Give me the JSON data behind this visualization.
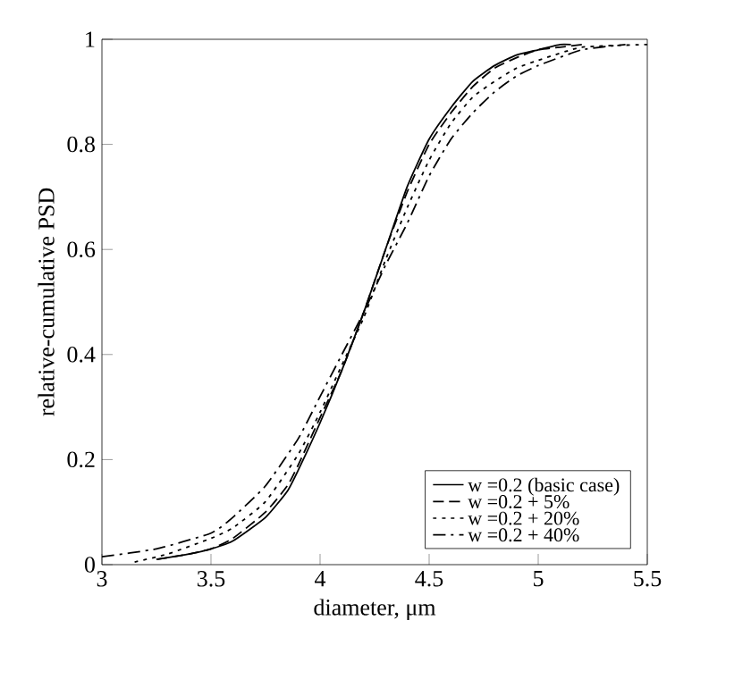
{
  "chart_data": {
    "type": "line",
    "xlabel": "diameter, μm",
    "ylabel": "relative-cumulative PSD",
    "xlim": [
      3,
      5.5
    ],
    "ylim": [
      0,
      1
    ],
    "xticks": [
      3,
      3.5,
      4,
      4.5,
      5,
      5.5
    ],
    "yticks": [
      0,
      0.2,
      0.4,
      0.6,
      0.8,
      1
    ],
    "legend": "bottom right",
    "grid": false,
    "marker": "none",
    "series": [
      {
        "name": "w =0.2 (basic case)",
        "color": "#000000",
        "line_style": "solid",
        "x": [
          3.25,
          3.4,
          3.5,
          3.6,
          3.75,
          3.85,
          3.9,
          4.0,
          4.1,
          4.2,
          4.3,
          4.4,
          4.5,
          4.6,
          4.7,
          4.8,
          4.9,
          5.0,
          5.1,
          5.15
        ],
        "values": [
          0.01,
          0.02,
          0.03,
          0.045,
          0.09,
          0.14,
          0.18,
          0.27,
          0.37,
          0.48,
          0.6,
          0.72,
          0.81,
          0.87,
          0.92,
          0.95,
          0.97,
          0.98,
          0.99,
          0.99
        ]
      },
      {
        "name": "w =0.2 + 5%",
        "color": "#000000",
        "line_style": "dashed",
        "x": [
          3.25,
          3.4,
          3.5,
          3.6,
          3.75,
          3.85,
          3.9,
          4.0,
          4.1,
          4.2,
          4.3,
          4.4,
          4.5,
          4.6,
          4.7,
          4.8,
          4.9,
          5.0,
          5.1,
          5.2
        ],
        "values": [
          0.01,
          0.02,
          0.03,
          0.05,
          0.1,
          0.15,
          0.19,
          0.28,
          0.37,
          0.48,
          0.6,
          0.71,
          0.8,
          0.86,
          0.91,
          0.945,
          0.965,
          0.98,
          0.985,
          0.99
        ]
      },
      {
        "name": "w =0.2 + 20%",
        "color": "#000000",
        "line_style": "dotted",
        "x": [
          3.15,
          3.3,
          3.5,
          3.6,
          3.75,
          3.9,
          4.0,
          4.1,
          4.2,
          4.3,
          4.4,
          4.5,
          4.6,
          4.7,
          4.8,
          4.9,
          5.0,
          5.2,
          5.5
        ],
        "values": [
          0.005,
          0.02,
          0.05,
          0.07,
          0.12,
          0.21,
          0.29,
          0.38,
          0.47,
          0.58,
          0.68,
          0.77,
          0.84,
          0.89,
          0.92,
          0.945,
          0.96,
          0.985,
          0.99
        ]
      },
      {
        "name": "w =0.2 + 40%",
        "color": "#000000",
        "line_style": "dashdot",
        "x": [
          3.0,
          3.25,
          3.5,
          3.6,
          3.75,
          3.9,
          4.0,
          4.1,
          4.2,
          4.3,
          4.4,
          4.5,
          4.6,
          4.7,
          4.8,
          4.9,
          5.0,
          5.2,
          5.4
        ],
        "values": [
          0.015,
          0.03,
          0.06,
          0.09,
          0.15,
          0.24,
          0.32,
          0.4,
          0.48,
          0.57,
          0.65,
          0.74,
          0.81,
          0.86,
          0.9,
          0.93,
          0.95,
          0.98,
          0.99
        ]
      }
    ]
  }
}
